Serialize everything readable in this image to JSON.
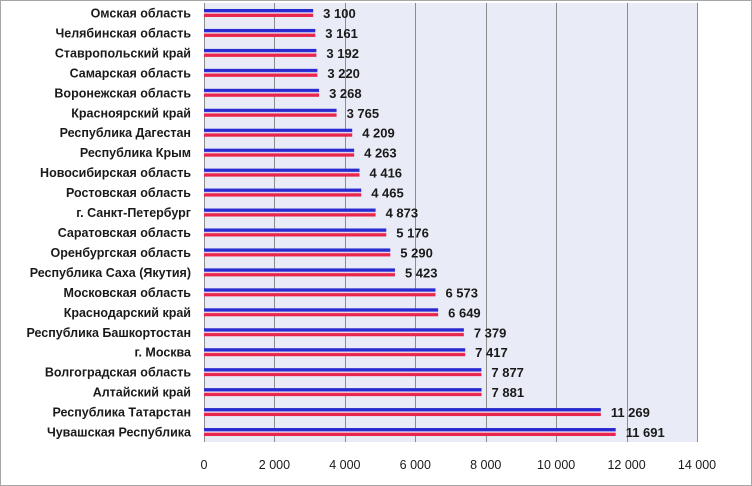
{
  "chart_data": {
    "type": "bar",
    "orientation": "horizontal",
    "title": "",
    "xlabel": "",
    "ylabel": "",
    "categories": [
      "Омская область",
      "Челябинская область",
      "Ставропольский край",
      "Самарская область",
      "Воронежская область",
      "Красноярский край",
      "Республика Дагестан",
      "Республика Крым",
      "Новосибирская область",
      "Ростовская область",
      "г. Санкт-Петербург",
      "Саратовская область",
      "Оренбургская область",
      "Республика Саха (Якутия)",
      "Московская область",
      "Краснодарский край",
      "Республика Башкортостан",
      "г. Москва",
      "Волгоградская область",
      "Алтайский край",
      "Республика Татарстан",
      "Чувашская Республика"
    ],
    "values": [
      3100,
      3161,
      3192,
      3220,
      3268,
      3765,
      4209,
      4263,
      4416,
      4465,
      4873,
      5176,
      5290,
      5423,
      6573,
      6649,
      7379,
      7417,
      7877,
      7881,
      11269,
      11691
    ],
    "value_labels": [
      "3 100",
      "3 161",
      "3 192",
      "3 220",
      "3 268",
      "3 765",
      "4 209",
      "4 263",
      "4 416",
      "4 465",
      "4 873",
      "5 176",
      "5 290",
      "5 423",
      "6 573",
      "6 649",
      "7 379",
      "7 417",
      "7 877",
      "7 881",
      "11 269",
      "11 691"
    ],
    "xlim": [
      0,
      14000
    ],
    "xticks": [
      0,
      2000,
      4000,
      6000,
      8000,
      10000,
      12000,
      14000
    ],
    "xtick_labels": [
      "0",
      "2 000",
      "4 000",
      "6 000",
      "8 000",
      "10 000",
      "12 000",
      "14 000"
    ],
    "grid": "vertical",
    "legend": "none",
    "colors": {
      "plot_background": "#e9ecf6",
      "gridline": "#8c8c8c",
      "bar_top": "#2a2ad0",
      "bar_middle": "#ffffff",
      "bar_bottom": "#e8264d"
    }
  }
}
